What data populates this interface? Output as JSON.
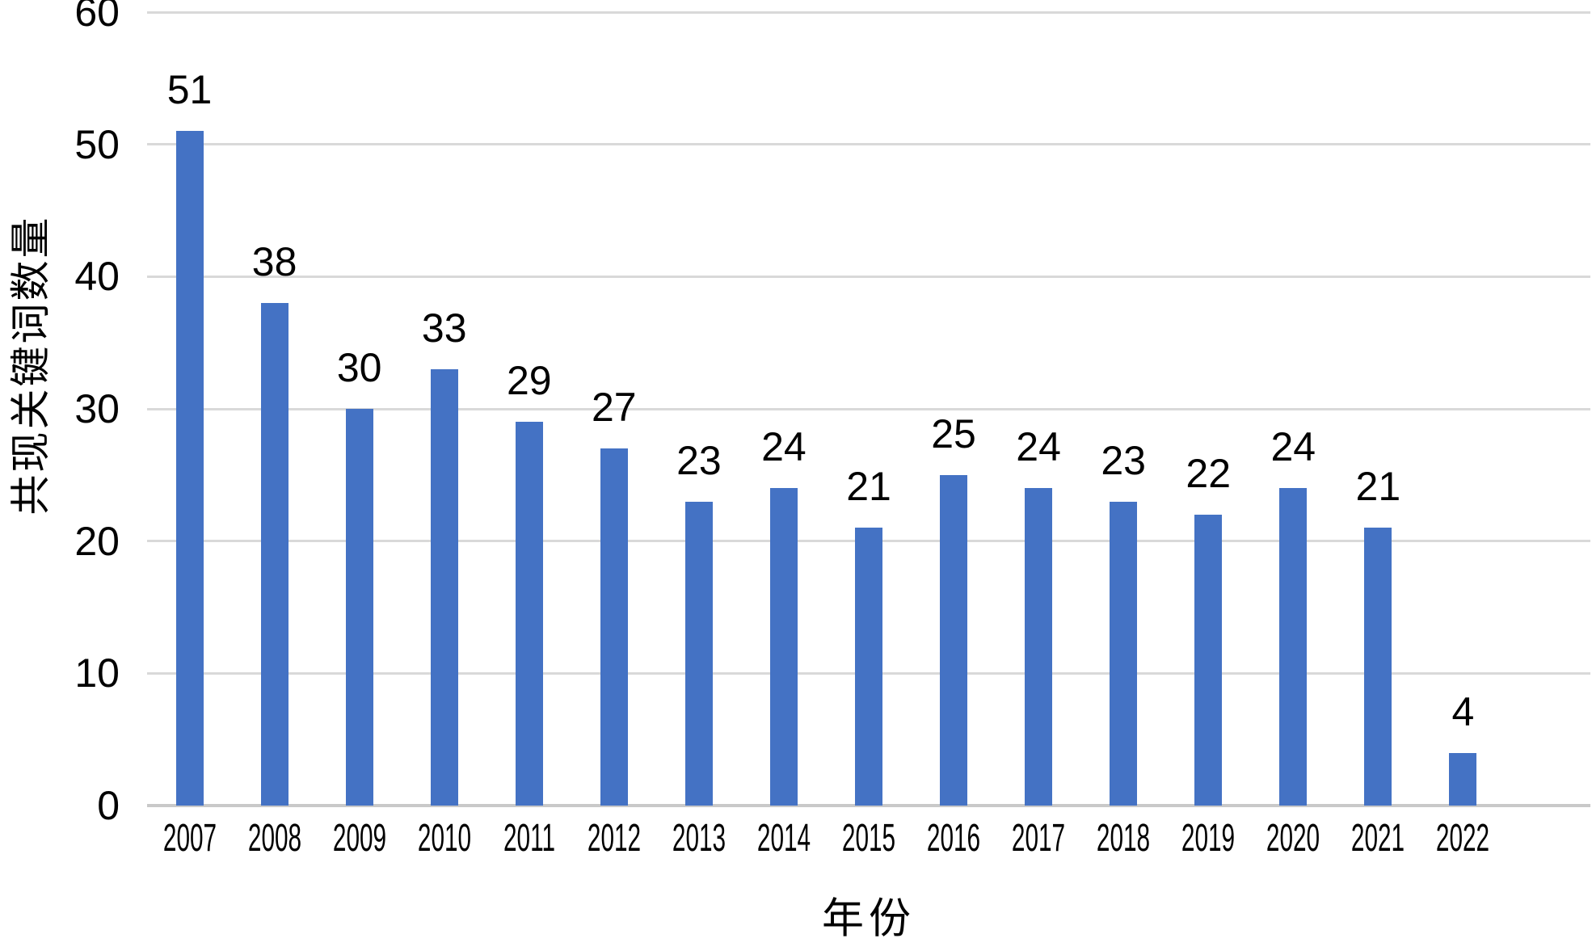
{
  "chart_data": {
    "type": "bar",
    "title": "",
    "xlabel": "年份",
    "ylabel": "共现关键词数量",
    "categories": [
      "2007",
      "2008",
      "2009",
      "2010",
      "2011",
      "2012",
      "2013",
      "2014",
      "2015",
      "2016",
      "2017",
      "2018",
      "2019",
      "2020",
      "2021",
      "2022"
    ],
    "values": [
      51,
      38,
      30,
      33,
      29,
      27,
      23,
      24,
      21,
      25,
      24,
      23,
      22,
      24,
      21,
      4
    ],
    "ylim": [
      0,
      60
    ],
    "yticks": [
      0,
      10,
      20,
      30,
      40,
      50,
      60
    ],
    "grid": "horizontal",
    "legend_position": "none",
    "data_labels_shown": true,
    "colors": {
      "bar": "#4472C4",
      "gridline": "#D9D9D9",
      "axis_line": "#C9C9C9",
      "text": "#000000",
      "background": "#FFFFFF"
    }
  }
}
